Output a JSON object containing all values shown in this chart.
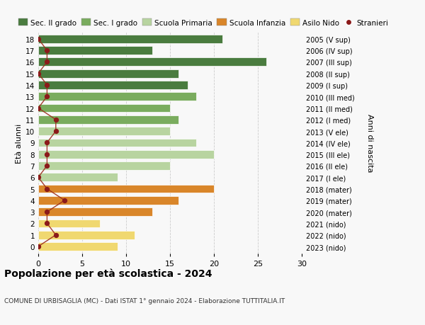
{
  "ages": [
    18,
    17,
    16,
    15,
    14,
    13,
    12,
    11,
    10,
    9,
    8,
    7,
    6,
    5,
    4,
    3,
    2,
    1,
    0
  ],
  "values": [
    21,
    13,
    26,
    16,
    17,
    18,
    15,
    16,
    15,
    18,
    20,
    15,
    9,
    20,
    16,
    13,
    7,
    11,
    9
  ],
  "stranieri": [
    0,
    1,
    1,
    0,
    1,
    1,
    0,
    2,
    2,
    1,
    1,
    1,
    0,
    1,
    3,
    1,
    1,
    2,
    0
  ],
  "right_labels": [
    "2005 (V sup)",
    "2006 (IV sup)",
    "2007 (III sup)",
    "2008 (II sup)",
    "2009 (I sup)",
    "2010 (III med)",
    "2011 (II med)",
    "2012 (I med)",
    "2013 (V ele)",
    "2014 (IV ele)",
    "2015 (III ele)",
    "2016 (II ele)",
    "2017 (I ele)",
    "2018 (mater)",
    "2019 (mater)",
    "2020 (mater)",
    "2021 (nido)",
    "2022 (nido)",
    "2023 (nido)"
  ],
  "bar_colors": [
    "#4a7c3f",
    "#4a7c3f",
    "#4a7c3f",
    "#4a7c3f",
    "#4a7c3f",
    "#7aac5e",
    "#7aac5e",
    "#7aac5e",
    "#b8d4a0",
    "#b8d4a0",
    "#b8d4a0",
    "#b8d4a0",
    "#b8d4a0",
    "#d9862a",
    "#d9862a",
    "#d9862a",
    "#f0d870",
    "#f0d870",
    "#f0d870"
  ],
  "legend_labels": [
    "Sec. II grado",
    "Sec. I grado",
    "Scuola Primaria",
    "Scuola Infanzia",
    "Asilo Nido",
    "Stranieri"
  ],
  "legend_colors": [
    "#4a7c3f",
    "#7aac5e",
    "#b8d4a0",
    "#d9862a",
    "#f0d870",
    "#8b1a1a"
  ],
  "title": "Popolazione per età scolastica - 2024",
  "subtitle": "COMUNE DI URBISAGLIA (MC) - Dati ISTAT 1° gennaio 2024 - Elaborazione TUTTITALIA.IT",
  "ylabel_left": "Età alunni",
  "ylabel_right": "Anni di nascita",
  "xlim": [
    0,
    30
  ],
  "bg_color": "#f8f8f8",
  "stranieri_color": "#8b1a1a",
  "stranieri_line_color": "#9b2a1a",
  "grid_color": "#cccccc"
}
